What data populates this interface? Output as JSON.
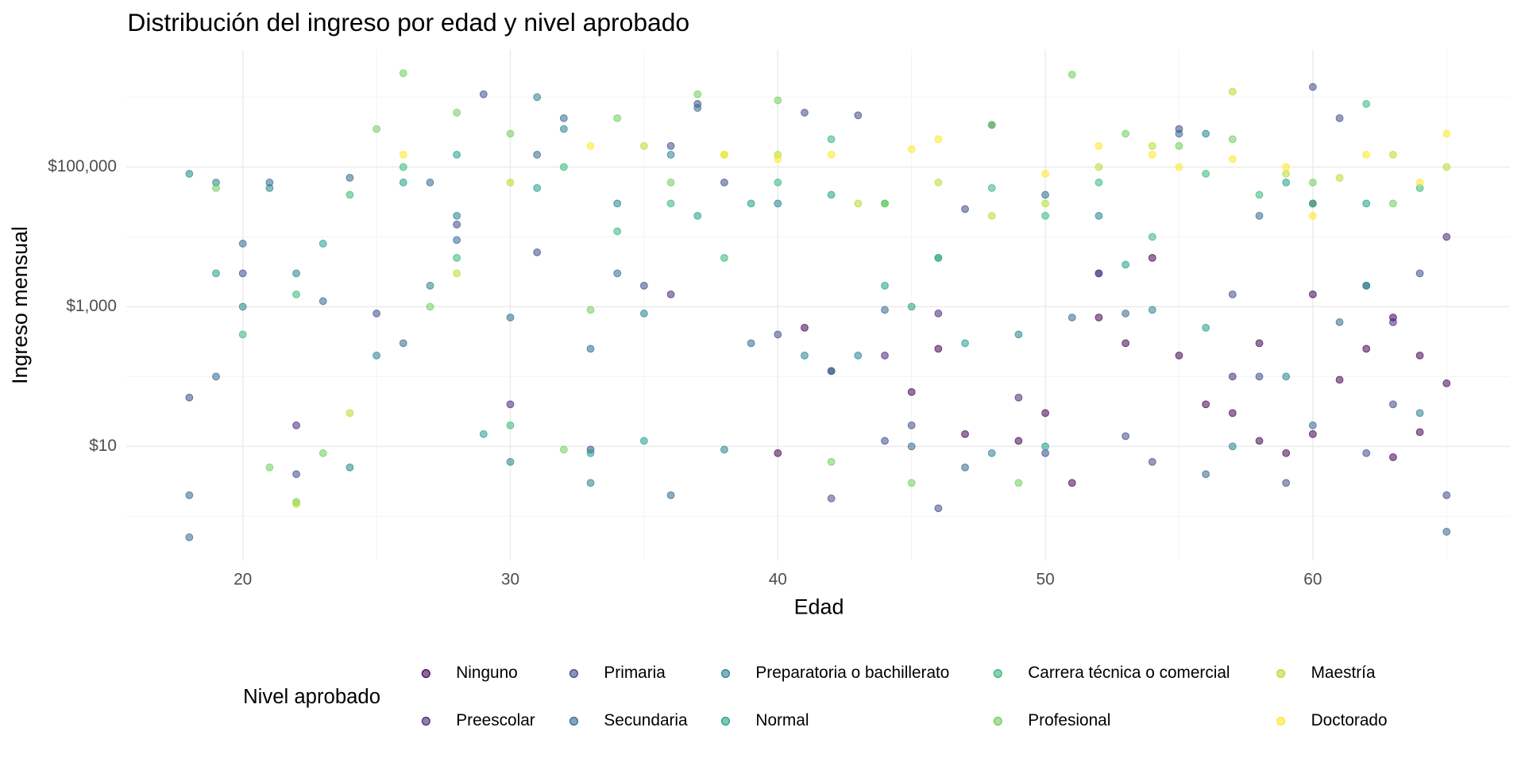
{
  "chart_data": {
    "type": "scatter",
    "title": "Distribución del ingreso por edad y nivel aprobado",
    "x_label": "Edad",
    "y_label": "Ingreso mensual",
    "legend_title": "Nivel aprobado",
    "xlim": [
      15.65,
      67.35
    ],
    "xticks": [
      20,
      30,
      40,
      50,
      60
    ],
    "x_minor_ticks": [
      25,
      35,
      45,
      55,
      65
    ],
    "ylim": [
      0.23,
      4800000
    ],
    "y_log": true,
    "yticks": [
      {
        "value": 10,
        "label": "$10"
      },
      {
        "value": 1000,
        "label": "$1,000"
      },
      {
        "value": 100000,
        "label": "$100,000"
      }
    ],
    "y_minor_ticks": [
      1,
      100,
      10000,
      1000000
    ],
    "grid": true,
    "legend_position": "bottom",
    "series": [
      {
        "name": "Ninguno",
        "color": "#440154",
        "x": [
          41,
          40,
          45,
          49,
          51,
          55,
          57,
          58,
          59,
          60,
          61,
          62,
          63,
          64,
          65,
          47,
          53,
          56,
          60,
          63,
          64,
          46,
          50,
          52,
          54,
          58
        ],
        "values": [
          500,
          8,
          60,
          12,
          3,
          200,
          30,
          12,
          8,
          15,
          90,
          250,
          7,
          16,
          80,
          15,
          300,
          40,
          1500,
          700,
          200,
          250,
          30,
          700,
          5000,
          300
        ]
      },
      {
        "name": "Preescolar",
        "color": "#482878",
        "x": [
          22,
          30,
          36,
          42,
          46,
          52,
          57,
          60,
          63,
          65,
          44,
          49
        ],
        "values": [
          20,
          40,
          1500,
          120,
          800,
          3000,
          100,
          30000,
          600,
          10000,
          200,
          50
        ]
      },
      {
        "name": "Primaria",
        "color": "#3e4a89",
        "x": [
          18,
          20,
          22,
          25,
          28,
          29,
          31,
          33,
          35,
          37,
          40,
          41,
          42,
          43,
          45,
          46,
          47,
          50,
          52,
          54,
          55,
          57,
          59,
          60,
          61,
          63,
          64,
          65,
          36,
          38,
          44,
          48,
          53,
          58,
          62
        ],
        "values": [
          50,
          3000,
          4,
          800,
          15000,
          1100000,
          6000,
          9,
          2000,
          800000,
          400,
          600000,
          1.8,
          550000,
          20,
          1.3,
          25000,
          8,
          3000,
          6,
          350000,
          1500,
          3,
          1400000,
          500000,
          40,
          3000,
          2,
          200000,
          60000,
          12,
          400000,
          14,
          100,
          8
        ]
      },
      {
        "name": "Secundaria",
        "color": "#31688e",
        "x": [
          18,
          18,
          19,
          20,
          21,
          23,
          24,
          26,
          28,
          30,
          31,
          32,
          34,
          36,
          37,
          39,
          42,
          44,
          47,
          50,
          53,
          56,
          58,
          61,
          65,
          27,
          33,
          45,
          51,
          55,
          60,
          62
        ],
        "values": [
          0.5,
          2,
          100,
          8000,
          60000,
          1200,
          70000,
          300,
          9000,
          700,
          150000,
          500000,
          3000,
          2,
          700000,
          300,
          120,
          900,
          5,
          40000,
          800,
          4,
          20000,
          600,
          0.6,
          60000,
          250,
          10,
          700,
          300000,
          20,
          2000
        ]
      },
      {
        "name": "Preparatoria o bachillerato",
        "color": "#26828e",
        "x": [
          18,
          19,
          20,
          21,
          22,
          24,
          25,
          27,
          28,
          30,
          31,
          32,
          34,
          35,
          36,
          38,
          40,
          43,
          46,
          48,
          49,
          52,
          54,
          56,
          59,
          62,
          64,
          33,
          41,
          57
        ],
        "values": [
          80000,
          60000,
          1000,
          50000,
          3000,
          5,
          200,
          2000,
          20000,
          6,
          1000000,
          350000,
          30000,
          800,
          150000,
          9,
          30000,
          200,
          5000,
          8,
          400,
          20000,
          900,
          300000,
          100,
          2000,
          30,
          3,
          200,
          10
        ]
      },
      {
        "name": "Normal",
        "color": "#1f9e89",
        "x": [
          19,
          23,
          26,
          29,
          31,
          33,
          37,
          39,
          42,
          44,
          47,
          50,
          53,
          56,
          59,
          62,
          45,
          35,
          28
        ],
        "values": [
          3000,
          8000,
          60000,
          15,
          50000,
          8,
          20000,
          30000,
          40000,
          2000,
          300,
          10,
          4000,
          500,
          60000,
          30000,
          1000,
          12,
          150000
        ]
      },
      {
        "name": "Carrera técnica o comercial",
        "color": "#35b779",
        "x": [
          20,
          22,
          24,
          26,
          28,
          30,
          32,
          34,
          36,
          38,
          40,
          42,
          44,
          46,
          48,
          50,
          52,
          54,
          56,
          58,
          60,
          62,
          64
        ],
        "values": [
          400,
          1500,
          40000,
          100000,
          5000,
          20,
          100000,
          12000,
          30000,
          5000,
          60000,
          250000,
          30000,
          5000,
          50000,
          20000,
          60000,
          10000,
          80000,
          40000,
          30000,
          800000,
          50000
        ]
      },
      {
        "name": "Profesional",
        "color": "#6dcd59",
        "x": [
          22,
          23,
          25,
          26,
          28,
          30,
          32,
          33,
          34,
          37,
          40,
          42,
          45,
          48,
          49,
          51,
          53,
          55,
          57,
          60,
          63,
          21,
          19,
          27,
          36,
          44
        ],
        "values": [
          1.6,
          8,
          350000,
          2200000,
          600000,
          300000,
          9,
          900,
          500000,
          1100000,
          900000,
          6,
          3,
          400000,
          3,
          2100000,
          300000,
          200000,
          250000,
          60000,
          30000,
          5,
          50000,
          1000,
          60000,
          30000
        ]
      },
      {
        "name": "Maestría",
        "color": "#b4de2c",
        "x": [
          22,
          24,
          30,
          35,
          38,
          40,
          43,
          46,
          48,
          52,
          54,
          57,
          59,
          61,
          63,
          65,
          28,
          50
        ],
        "values": [
          1.5,
          30,
          60000,
          200000,
          150000,
          150000,
          30000,
          60000,
          20000,
          100000,
          200000,
          1200000,
          80000,
          70000,
          150000,
          100000,
          3000,
          30000
        ]
      },
      {
        "name": "Doctorado",
        "color": "#fde725",
        "x": [
          26,
          33,
          38,
          40,
          42,
          45,
          46,
          50,
          52,
          54,
          55,
          57,
          59,
          62,
          64,
          65,
          60
        ],
        "values": [
          150000,
          200000,
          150000,
          130000,
          150000,
          180000,
          250000,
          80000,
          200000,
          150000,
          100000,
          130000,
          100000,
          150000,
          60000,
          300000,
          20000
        ]
      }
    ]
  }
}
